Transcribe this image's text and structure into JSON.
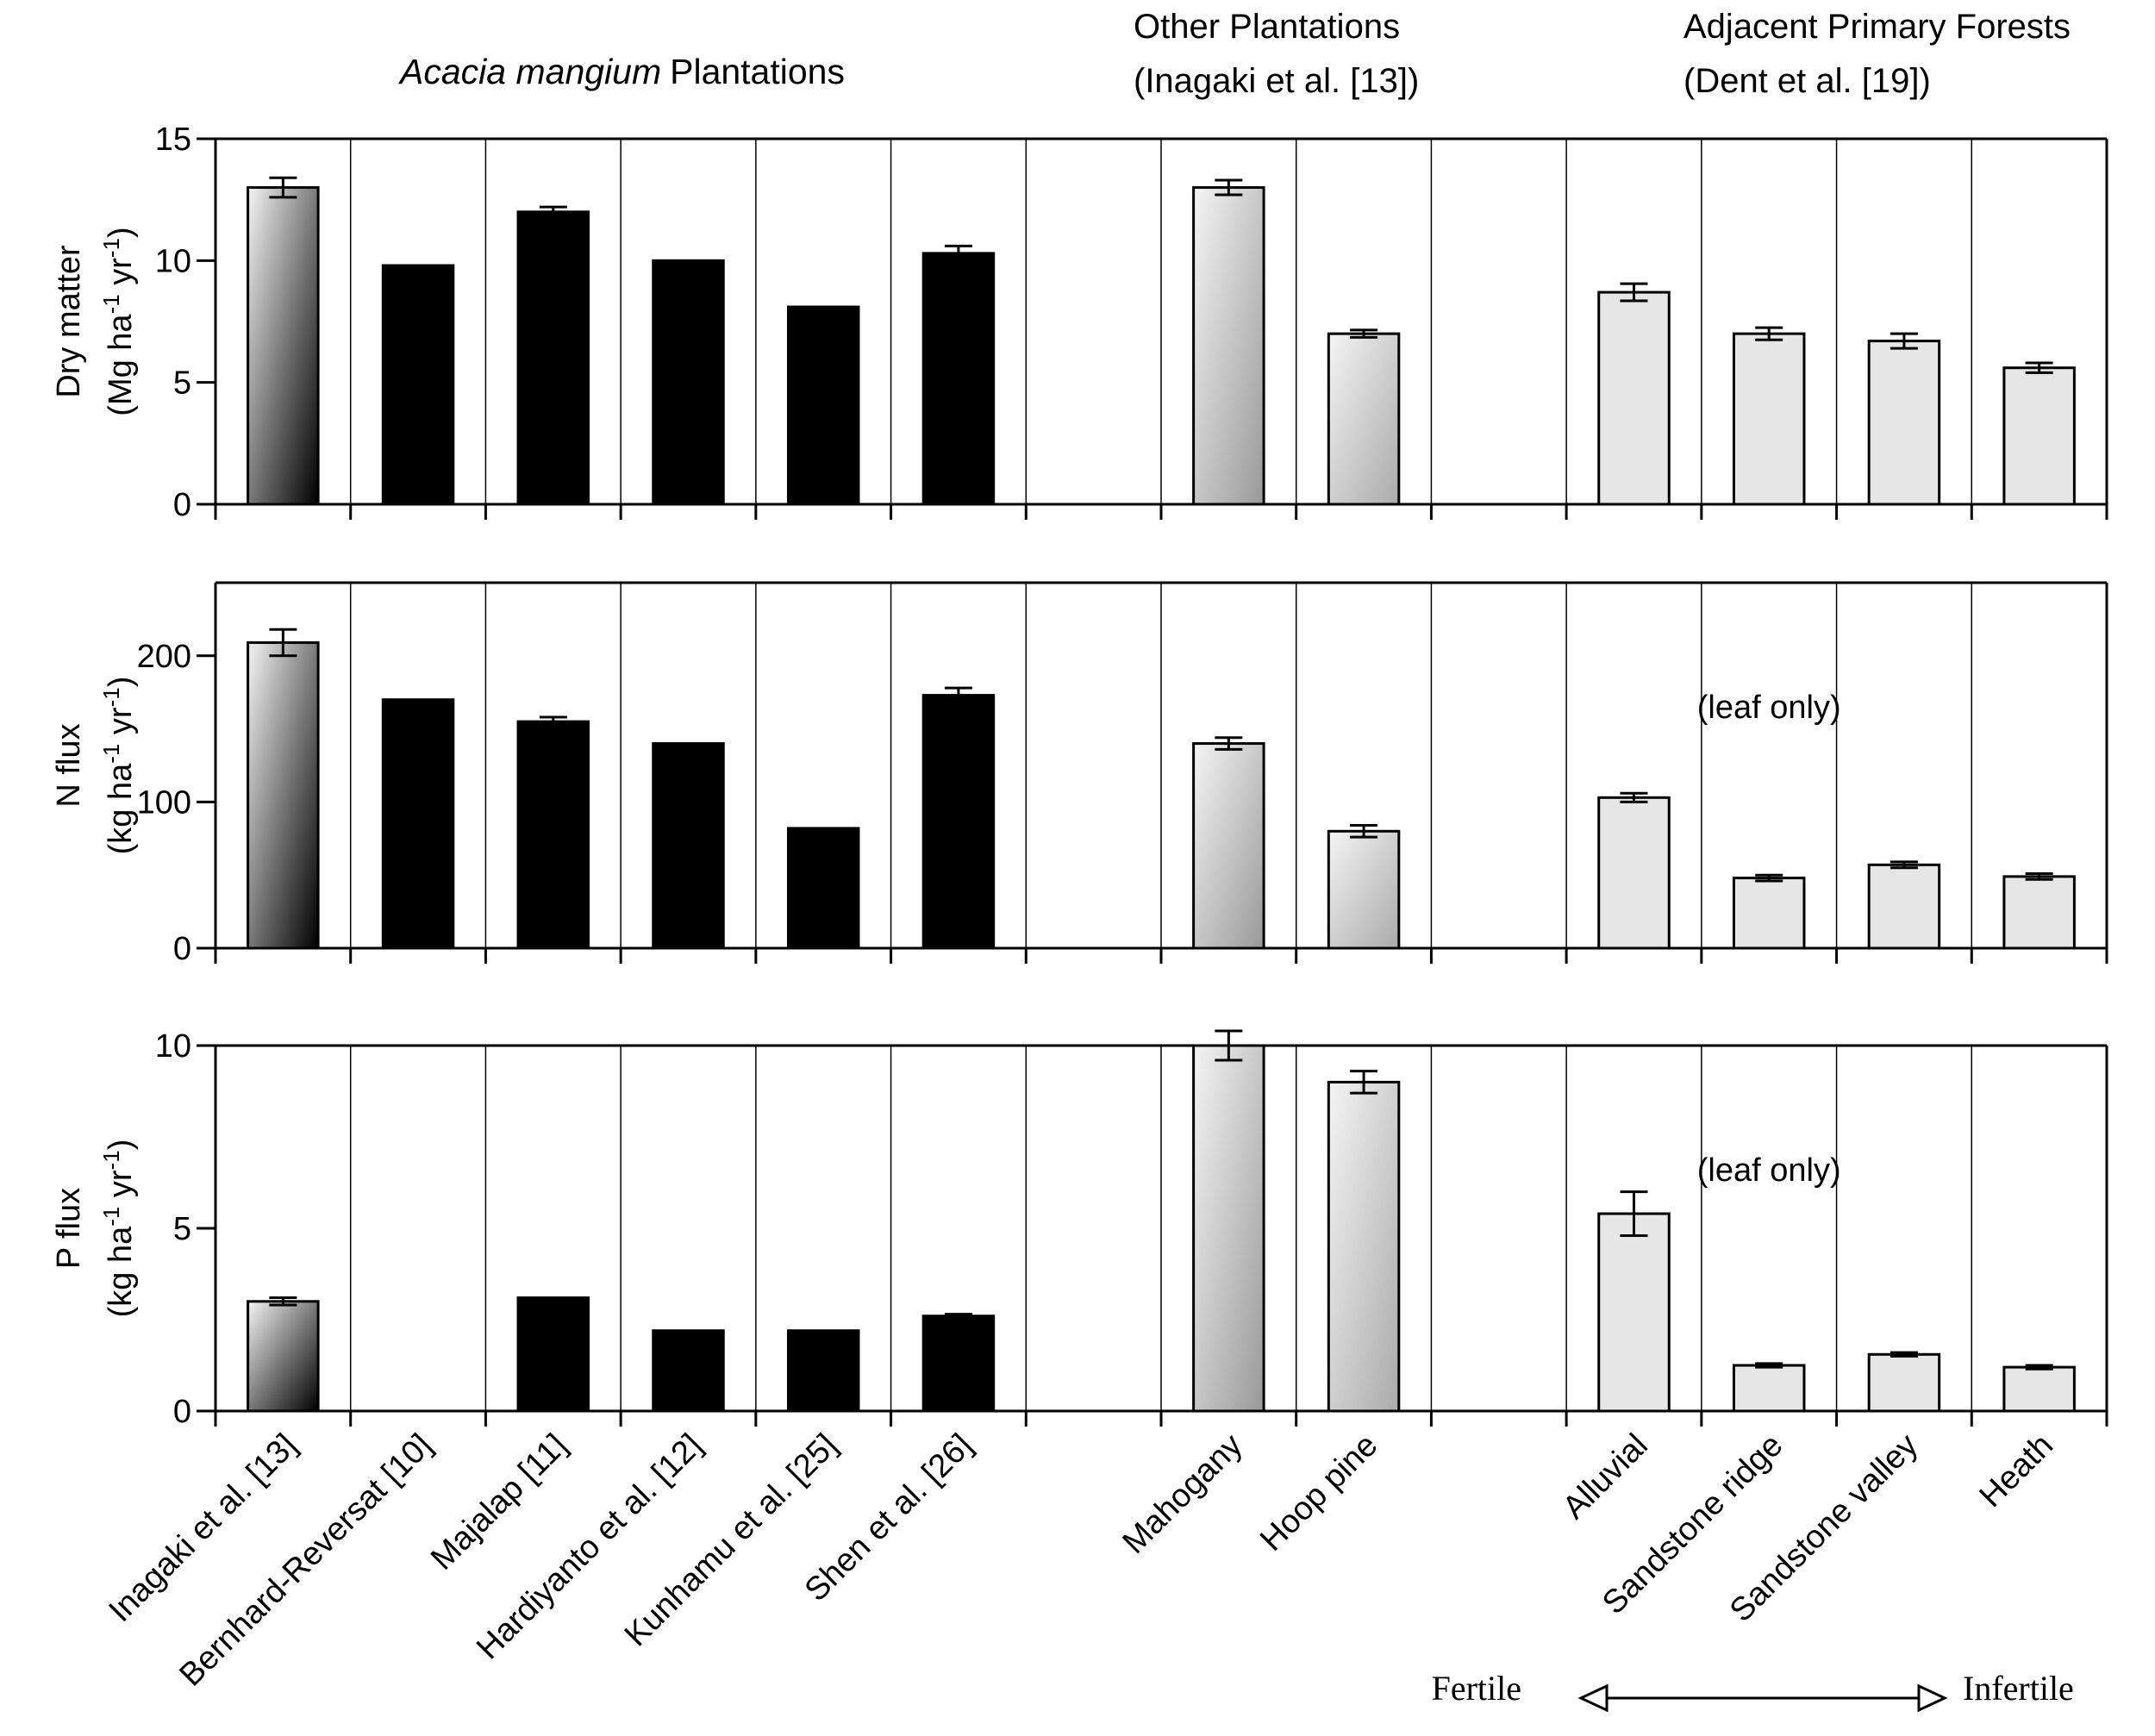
{
  "chart_data": [
    {
      "type": "bar",
      "ylabel": "Dry matter",
      "yunit": [
        "(Mg ha",
        "-1",
        " yr",
        "-1",
        ")"
      ],
      "values": [
        13.0,
        9.8,
        12.0,
        10.0,
        8.1,
        10.3,
        null,
        13.0,
        7.0,
        null,
        8.7,
        7.0,
        6.7,
        5.6
      ],
      "errors": [
        0.4,
        null,
        0.2,
        null,
        null,
        0.3,
        null,
        0.3,
        0.15,
        null,
        0.35,
        0.25,
        0.3,
        0.2
      ],
      "colors": [
        "#000000",
        "#000000",
        "#000000",
        "#000000",
        "#000000",
        "#000000",
        null,
        "#999999",
        "#aaaaaa",
        null,
        "#e6e6e6",
        "#e6e6e6",
        "#e6e6e6",
        "#e6e6e6"
      ],
      "gradient": [
        true,
        false,
        false,
        false,
        false,
        false,
        false,
        true,
        true,
        false,
        false,
        false,
        false,
        false
      ],
      "ylim": [
        0,
        15
      ],
      "yticks": [
        0,
        5,
        10,
        15
      ],
      "group_labels": [
        {
          "italic": "Acacia mangium",
          "text": "Plantations"
        },
        {
          "lines": [
            "Other Plantations",
            "(Inagaki et al. [13])"
          ]
        },
        {
          "lines": [
            "Adjacent Primary Forests",
            "(Dent et al. [19])"
          ]
        }
      ]
    },
    {
      "type": "bar",
      "ylabel": "N flux",
      "yunit": [
        "(kg ha",
        "-1",
        " yr",
        "-1",
        ")"
      ],
      "values": [
        209,
        170,
        155,
        140,
        82,
        173,
        null,
        140,
        80,
        null,
        103,
        48,
        57,
        49
      ],
      "errors": [
        9,
        null,
        3,
        null,
        null,
        5,
        null,
        4,
        4,
        null,
        3,
        2,
        2,
        2
      ],
      "colors": [
        "#000000",
        "#000000",
        "#000000",
        "#000000",
        "#000000",
        "#000000",
        null,
        "#999999",
        "#aaaaaa",
        null,
        "#e6e6e6",
        "#e6e6e6",
        "#e6e6e6",
        "#e6e6e6"
      ],
      "gradient": [
        true,
        false,
        false,
        false,
        false,
        false,
        false,
        true,
        true,
        false,
        false,
        false,
        false,
        false
      ],
      "ylim": [
        0,
        250
      ],
      "yticks": [
        0,
        100,
        200
      ],
      "annotation": "(leaf only)"
    },
    {
      "type": "bar",
      "ylabel": "P flux",
      "yunit": [
        "(kg ha",
        "-1",
        " yr",
        "-1",
        ")"
      ],
      "categories": [
        "Inagaki et al. [13]",
        "Bernhard-Reversat [10]",
        "Majalap [11]",
        "Hardiyanto et al. [12]",
        "Kunhamu et al. [25]",
        "Shen et al. [26]",
        null,
        "Mahogany",
        "Hoop pine",
        null,
        "Alluvial",
        "Sandstone ridge",
        "Sandstone valley",
        "Heath"
      ],
      "values": [
        3.0,
        null,
        3.1,
        2.2,
        2.2,
        2.6,
        null,
        10.0,
        9.0,
        null,
        5.4,
        1.25,
        1.55,
        1.2
      ],
      "errors": [
        0.1,
        null,
        null,
        null,
        null,
        0.05,
        null,
        0.4,
        0.3,
        null,
        0.6,
        0.05,
        0.05,
        0.05
      ],
      "colors": [
        "#000000",
        "#000000",
        "#000000",
        "#000000",
        "#000000",
        "#000000",
        null,
        "#999999",
        "#aaaaaa",
        null,
        "#e6e6e6",
        "#e6e6e6",
        "#e6e6e6",
        "#e6e6e6"
      ],
      "gradient": [
        true,
        false,
        false,
        false,
        false,
        false,
        false,
        true,
        true,
        false,
        false,
        false,
        false,
        false
      ],
      "ylim": [
        0,
        10
      ],
      "yticks": [
        0,
        5,
        10
      ],
      "annotation": "(leaf only)",
      "fertility": {
        "left": "Fertile",
        "right": "Infertile"
      }
    }
  ]
}
